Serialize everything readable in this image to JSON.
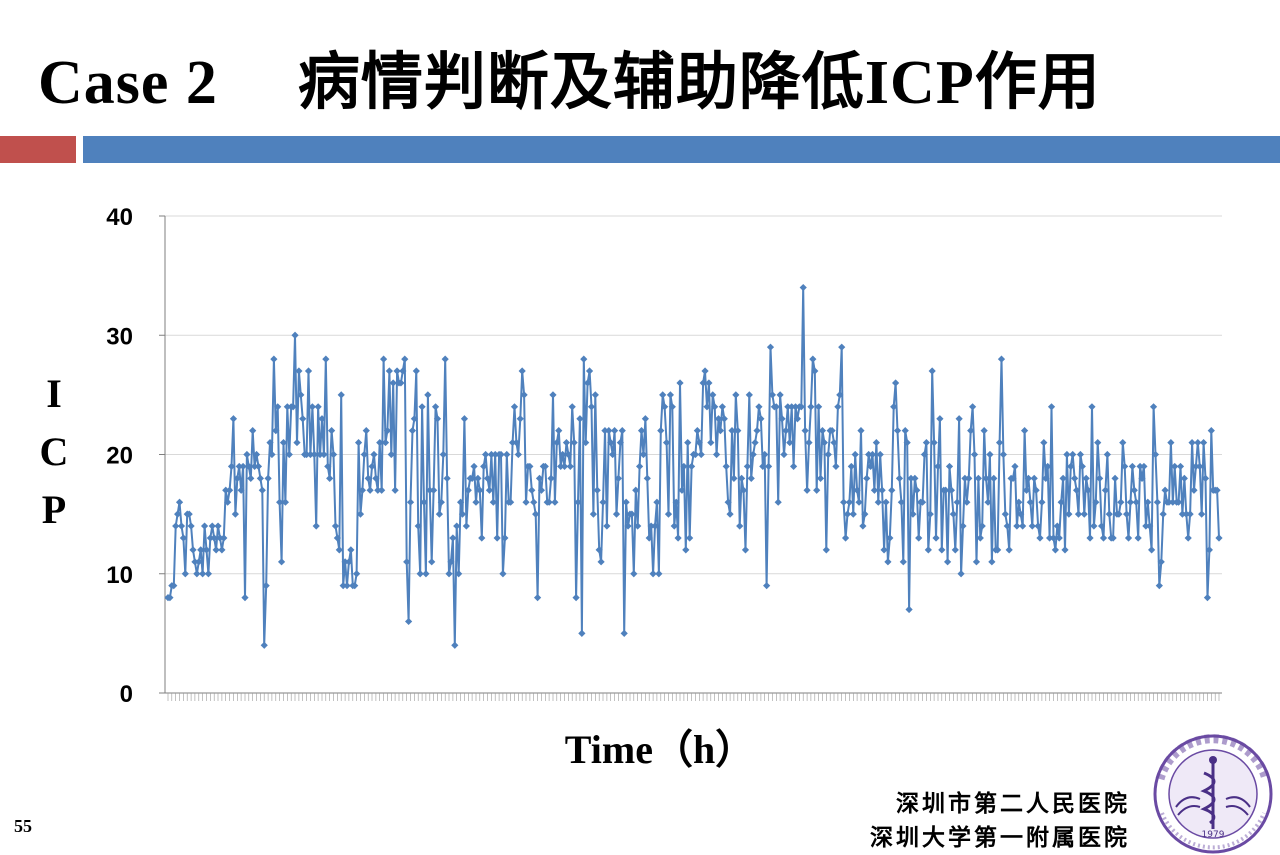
{
  "slide": {
    "title_case": "Case 2",
    "title_main": "病情判断及辅助降低ICP作用",
    "page_number": "55",
    "hospital_line1": "深圳市第二人民医院",
    "hospital_line2": "深圳大学第一附属医院",
    "accent_colors": {
      "red": "#c0504d",
      "blue": "#4f81bd"
    }
  },
  "logo": {
    "icon": "hospital-seal-caduceus-icon",
    "year": "1979"
  },
  "chart_data": {
    "type": "line",
    "title": "",
    "xlabel": "Time（h）",
    "ylabel": "ICP",
    "ylim": [
      0,
      40
    ],
    "yticks": [
      0,
      10,
      20,
      30,
      40
    ],
    "grid": true,
    "legend": "none",
    "series_color": "#4f81bd",
    "marker": "diamond",
    "series": [
      {
        "values": [
          8,
          8,
          9,
          9,
          14,
          15,
          16,
          14,
          13,
          10,
          15,
          15,
          14,
          12,
          11,
          10,
          11,
          12,
          10,
          14,
          12,
          10,
          13,
          14,
          13,
          12,
          14,
          13,
          12,
          13,
          17,
          16,
          17,
          19,
          23,
          15,
          18,
          19,
          17,
          19,
          8,
          20,
          19,
          18,
          22,
          19,
          20,
          19,
          18,
          17,
          4,
          9,
          18,
          21,
          20,
          28,
          22,
          24,
          16,
          11,
          21,
          16,
          24,
          20,
          24,
          24,
          30,
          21,
          27,
          25,
          23,
          20,
          20,
          27,
          20,
          24,
          20,
          14,
          24,
          20,
          23,
          20,
          28,
          19,
          18,
          22,
          20,
          14,
          13,
          12,
          25,
          9,
          11,
          9,
          11,
          12,
          9,
          9,
          10,
          21,
          15,
          17,
          20,
          22,
          18,
          17,
          19,
          20,
          18,
          17,
          21,
          17,
          28,
          21,
          22,
          27,
          20,
          26,
          17,
          27,
          26,
          26,
          27,
          28,
          11,
          6,
          16,
          22,
          23,
          27,
          14,
          10,
          24,
          16,
          10,
          25,
          17,
          11,
          17,
          24,
          23,
          15,
          16,
          20,
          28,
          18,
          10,
          11,
          13,
          4,
          14,
          10,
          16,
          15,
          23,
          14,
          17,
          18,
          18,
          19,
          16,
          18,
          17,
          13,
          19,
          20,
          18,
          17,
          20,
          16,
          20,
          13,
          20,
          20,
          10,
          13,
          20,
          16,
          16,
          21,
          24,
          21,
          20,
          23,
          27,
          25,
          16,
          19,
          19,
          17,
          16,
          15,
          8,
          18,
          17,
          19,
          19,
          16,
          16,
          18,
          25,
          16,
          21,
          22,
          19,
          20,
          19,
          21,
          20,
          19,
          24,
          21,
          8,
          16,
          23,
          5,
          28,
          21,
          26,
          27,
          24,
          15,
          25,
          17,
          12,
          11,
          16,
          22,
          14,
          22,
          21,
          20,
          22,
          15,
          18,
          21,
          22,
          5,
          16,
          14,
          15,
          15,
          10,
          17,
          14,
          19,
          22,
          20,
          23,
          18,
          13,
          14,
          10,
          14,
          16,
          10,
          22,
          25,
          24,
          21,
          15,
          25,
          24,
          14,
          16,
          13,
          26,
          17,
          19,
          12,
          21,
          13,
          19,
          20,
          20,
          22,
          21,
          20,
          26,
          27,
          24,
          26,
          21,
          25,
          24,
          20,
          23,
          22,
          24,
          23,
          19,
          16,
          15,
          22,
          18,
          25,
          22,
          14,
          18,
          17,
          12,
          19,
          25,
          18,
          20,
          21,
          22,
          24,
          23,
          19,
          20,
          9,
          19,
          29,
          25,
          24,
          24,
          16,
          25,
          23,
          20,
          22,
          24,
          21,
          24,
          19,
          24,
          23,
          24,
          24,
          34,
          22,
          17,
          21,
          24,
          28,
          27,
          17,
          24,
          18,
          22,
          21,
          12,
          20,
          22,
          22,
          21,
          19,
          24,
          25,
          29,
          16,
          13,
          15,
          16,
          19,
          15,
          20,
          17,
          16,
          22,
          14,
          15,
          18,
          20,
          19,
          20,
          17,
          21,
          16,
          20,
          17,
          12,
          16,
          11,
          13,
          17,
          24,
          26,
          22,
          18,
          16,
          11,
          22,
          21,
          7,
          18,
          15,
          18,
          17,
          13,
          16,
          16,
          20,
          21,
          12,
          15,
          27,
          21,
          13,
          19,
          23,
          12,
          17,
          17,
          11,
          19,
          17,
          15,
          12,
          16,
          23,
          10,
          14,
          18,
          16,
          18,
          22,
          24,
          20,
          11,
          18,
          13,
          14,
          22,
          18,
          16,
          20,
          11,
          18,
          12,
          12,
          21,
          28,
          20,
          15,
          14,
          12,
          18,
          18,
          19,
          14,
          16,
          15,
          14,
          22,
          17,
          18,
          16,
          14,
          18,
          17,
          14,
          13,
          16,
          21,
          18,
          19,
          13,
          24,
          13,
          12,
          14,
          13,
          16,
          18,
          12,
          20,
          15,
          19,
          20,
          18,
          17,
          15,
          20,
          19,
          15,
          18,
          17,
          13,
          24,
          14,
          16,
          21,
          18,
          14,
          13,
          17,
          20,
          15,
          13,
          13,
          18,
          15,
          15,
          16,
          21,
          19,
          15,
          13,
          16,
          19,
          17,
          16,
          13,
          19,
          18,
          19,
          14,
          16,
          14,
          12,
          24,
          20,
          16,
          9,
          11,
          15,
          17,
          16,
          16,
          21,
          16,
          19,
          16,
          16,
          19,
          15,
          18,
          15,
          13,
          15,
          21,
          17,
          19,
          21,
          19,
          15,
          21,
          18,
          8,
          12,
          22,
          17,
          17,
          17,
          13
        ]
      }
    ]
  }
}
